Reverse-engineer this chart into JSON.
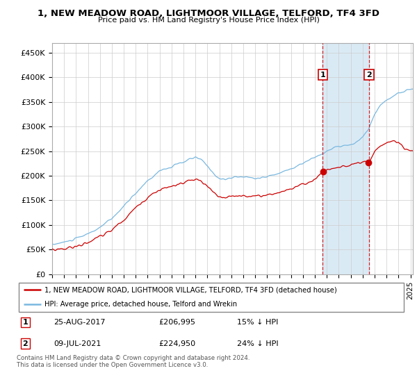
{
  "title": "1, NEW MEADOW ROAD, LIGHTMOOR VILLAGE, TELFORD, TF4 3FD",
  "subtitle": "Price paid vs. HM Land Registry's House Price Index (HPI)",
  "ylabel_ticks": [
    "£0",
    "£50K",
    "£100K",
    "£150K",
    "£200K",
    "£250K",
    "£300K",
    "£350K",
    "£400K",
    "£450K"
  ],
  "ytick_values": [
    0,
    50000,
    100000,
    150000,
    200000,
    250000,
    300000,
    350000,
    400000,
    450000
  ],
  "ylim": [
    0,
    470000
  ],
  "xlim_start": 1995.3,
  "xlim_end": 2025.2,
  "hpi_color": "#7ab8e0",
  "price_color": "#cc0000",
  "marker1_date": 2017.65,
  "marker1_price": 206995,
  "marker2_date": 2021.53,
  "marker2_price": 224950,
  "legend_line1": "1, NEW MEADOW ROAD, LIGHTMOOR VILLAGE, TELFORD, TF4 3FD (detached house)",
  "legend_line2": "HPI: Average price, detached house, Telford and Wrekin",
  "footnote": "Contains HM Land Registry data © Crown copyright and database right 2024.\nThis data is licensed under the Open Government Licence v3.0.",
  "background_color": "#ffffff",
  "plot_bg_color": "#ffffff",
  "grid_color": "#cccccc",
  "span_color": "#daeaf5"
}
